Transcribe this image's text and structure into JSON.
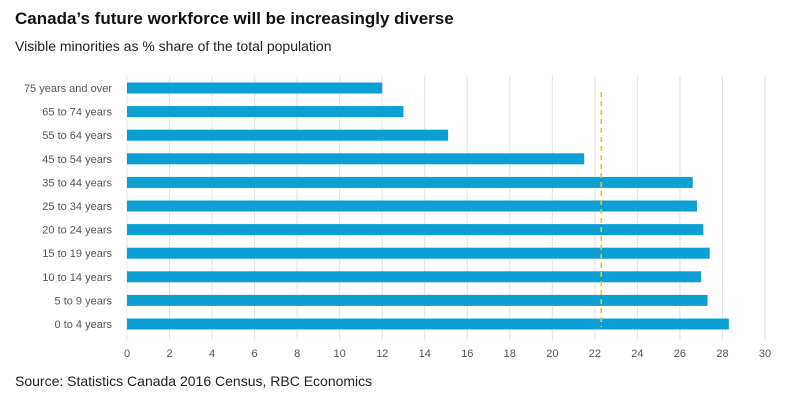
{
  "title": "Canada’s future workforce will be increasingly diverse",
  "subtitle": "Visible minorities as % share of the total population",
  "source": "Source: Statistics Canada 2016 Census, RBC Economics",
  "colors": {
    "bar": "#0b9fd4",
    "reference_line": "#e6c229",
    "grid": "#e2e2e2"
  },
  "chart_data": {
    "type": "bar",
    "orientation": "horizontal",
    "title": "Canada’s future workforce will be increasingly diverse",
    "subtitle": "Visible minorities as % share of the total population",
    "categories": [
      "75 years and over",
      "65 to 74 years",
      "55 to 64 years",
      "45 to 54 years",
      "35 to 44 years",
      "25 to 34 years",
      "20 to 24 years",
      "15 to 19 years",
      "10 to 14 years",
      "5 to 9 years",
      "0 to 4 years"
    ],
    "values": [
      12.0,
      13.0,
      15.1,
      21.5,
      26.6,
      26.8,
      27.1,
      27.4,
      27.0,
      27.3,
      28.3
    ],
    "reference_value": 22.3,
    "reference_style": "dashed",
    "xlim": [
      0,
      30
    ],
    "xticks": [
      0,
      2,
      4,
      6,
      8,
      10,
      12,
      14,
      16,
      18,
      20,
      22,
      24,
      26,
      28,
      30
    ],
    "xlabel": "",
    "ylabel": "",
    "grid": "vertical"
  }
}
